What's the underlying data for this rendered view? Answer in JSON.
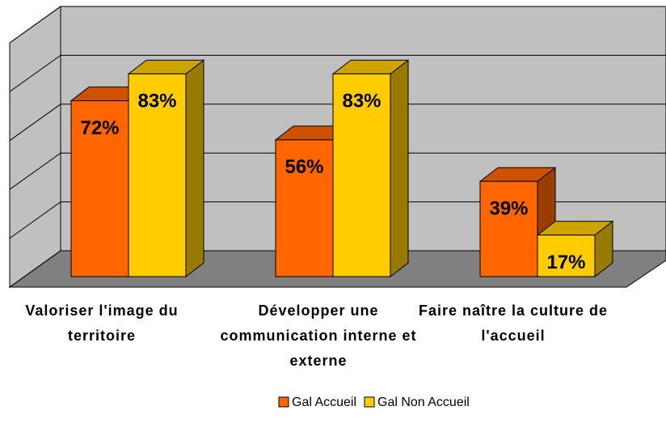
{
  "chart_data": {
    "type": "bar3d",
    "categories": [
      "Valoriser l'image du territoire",
      "Développer une communication interne et externe",
      "Faire naître la culture de l'accueil"
    ],
    "series": [
      {
        "name": "Gal Accueil",
        "color": "#ff6600",
        "values": [
          72,
          56,
          39
        ],
        "value_labels": [
          "72%",
          "56%",
          "39%"
        ]
      },
      {
        "name": "Gal Non Accueil",
        "color": "#ffcc00",
        "values": [
          83,
          83,
          17
        ],
        "value_labels": [
          "83%",
          "83%",
          "17%"
        ]
      }
    ],
    "ylim": [
      0,
      100
    ],
    "yticks": [
      0,
      20,
      40,
      60,
      80,
      100
    ],
    "grid": true,
    "legend": "bottom"
  }
}
